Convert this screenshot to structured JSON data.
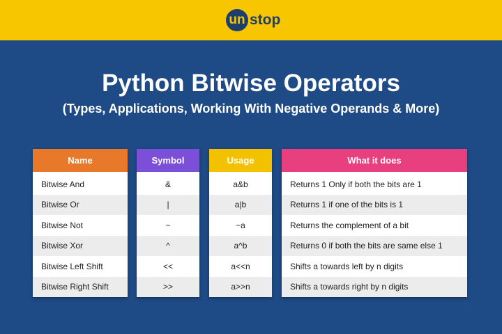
{
  "header": {
    "logo": {
      "badge": "un",
      "rest": "stop"
    }
  },
  "title": "Python Bitwise Operators",
  "subtitle": "(Types, Applications, Working With Negative Operands & More)",
  "table": {
    "columns": [
      {
        "header": "Name",
        "cells": [
          "Bitwise And",
          "Bitwise Or",
          "Bitwise Not",
          "Bitwise Xor",
          "Bitwise Left Shift",
          "Bitwise Right Shift"
        ]
      },
      {
        "header": "Symbol",
        "cells": [
          "&",
          "|",
          "~",
          "^",
          "<<",
          ">>"
        ]
      },
      {
        "header": "Usage",
        "cells": [
          "a&b",
          "a|b",
          "~a",
          "a^b",
          "a<<n",
          "a>>n"
        ]
      },
      {
        "header": "What it does",
        "cells": [
          "Returns 1 Only if both the bits are 1",
          "Returns 1 if one of the bits is 1",
          "Returns the complement of a bit",
          "Returns 0 if both the bits are same else 1",
          "Shifts a towards left by n digits",
          "Shifts a towards right by n digits"
        ]
      }
    ]
  }
}
